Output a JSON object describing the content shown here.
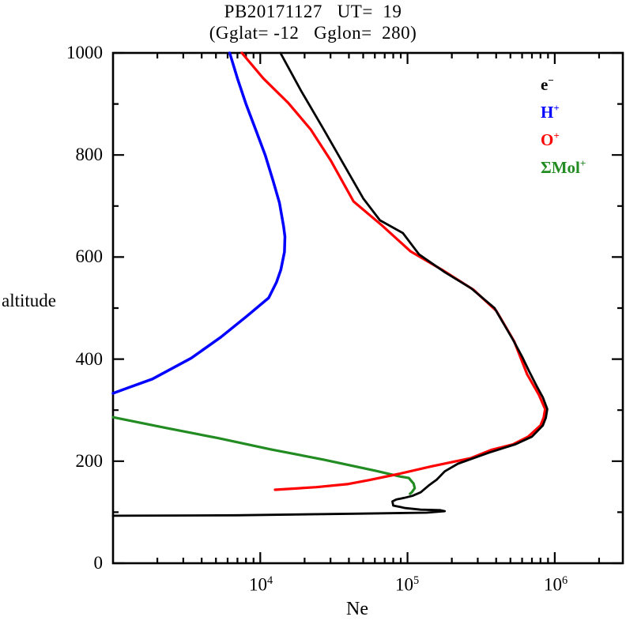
{
  "title": {
    "line1": "PB20171127   UT=  19",
    "line2": "(Gglat= -12   Gglon=  280)"
  },
  "axis_labels": {
    "y": "altitude",
    "x": "Ne"
  },
  "legend": {
    "position": "top-right",
    "entries": [
      {
        "id": "electron",
        "base": "e",
        "sup": "−",
        "color": "#000000"
      },
      {
        "id": "hydrogen-ion",
        "base": "H",
        "sup": "+",
        "color": "#0000ff"
      },
      {
        "id": "oxygen-ion",
        "base": "O",
        "sup": "+",
        "color": "#ff0000"
      },
      {
        "id": "molecular-ion",
        "base": "ΣMol",
        "sup": "+",
        "color": "#228B22"
      }
    ]
  },
  "chart_data": {
    "type": "line",
    "title": "PB20171127  UT= 19",
    "subtitle": "(Gglat= -12  Gglon= 280)",
    "xlabel": "Ne",
    "ylabel": "altitude",
    "x_scale": "log",
    "xlim": [
      1000,
      2900000
    ],
    "ylim": [
      0,
      1000
    ],
    "grid": false,
    "frame_color": "#000000",
    "xticks": [
      {
        "base": "10",
        "exp": "4",
        "value": 10000
      },
      {
        "base": "10",
        "exp": "5",
        "value": 100000
      },
      {
        "base": "10",
        "exp": "6",
        "value": 1000000
      }
    ],
    "yticks": [
      "1000",
      "800",
      "600",
      "400",
      "200",
      "0"
    ],
    "ytick_values": [
      0,
      200,
      400,
      600,
      800,
      1000
    ],
    "ytick_minor": [
      100,
      300,
      500,
      700,
      900
    ],
    "series": [
      {
        "name": "SigmaMol+",
        "color": "#228B22",
        "width": 3.2,
        "points": [
          [
            1000,
            286
          ],
          [
            2300,
            265
          ],
          [
            5200,
            245
          ],
          [
            11800,
            223
          ],
          [
            27000,
            203
          ],
          [
            61000,
            181
          ],
          [
            89000,
            170
          ],
          [
            102000,
            167
          ],
          [
            110000,
            156
          ],
          [
            112000,
            147
          ],
          [
            107000,
            139
          ],
          [
            104000,
            136
          ]
        ]
      },
      {
        "name": "H+",
        "color": "#0000ff",
        "width": 3.5,
        "points": [
          [
            6200,
            1000
          ],
          [
            7000,
            950
          ],
          [
            8000,
            900
          ],
          [
            9300,
            850
          ],
          [
            10800,
            800
          ],
          [
            12200,
            750
          ],
          [
            13500,
            706
          ],
          [
            14400,
            660
          ],
          [
            14700,
            640
          ],
          [
            14600,
            610
          ],
          [
            13800,
            575
          ],
          [
            12900,
            551
          ],
          [
            11400,
            520
          ],
          [
            8100,
            484
          ],
          [
            5400,
            443
          ],
          [
            3400,
            402
          ],
          [
            1850,
            361
          ],
          [
            1300,
            345
          ],
          [
            1000,
            333
          ]
        ]
      },
      {
        "name": "O+",
        "color": "#ff0000",
        "width": 3.2,
        "points": [
          [
            7500,
            1000
          ],
          [
            10500,
            950
          ],
          [
            15500,
            902
          ],
          [
            22000,
            850
          ],
          [
            30000,
            790
          ],
          [
            43000,
            709
          ],
          [
            67000,
            662
          ],
          [
            105000,
            611
          ],
          [
            176000,
            573
          ],
          [
            280000,
            536
          ],
          [
            400000,
            495
          ],
          [
            530000,
            435
          ],
          [
            650000,
            370
          ],
          [
            780000,
            330
          ],
          [
            860000,
            302
          ],
          [
            840000,
            285
          ],
          [
            800000,
            270
          ],
          [
            660000,
            248
          ],
          [
            520000,
            233
          ],
          [
            370000,
            222
          ],
          [
            270000,
            206
          ],
          [
            146000,
            190
          ],
          [
            87000,
            175
          ],
          [
            55000,
            163
          ],
          [
            39000,
            155
          ],
          [
            24000,
            149
          ],
          [
            12600,
            144
          ]
        ]
      },
      {
        "name": "e-",
        "color": "#000000",
        "width": 2.8,
        "points": [
          [
            13700,
            1000
          ],
          [
            19000,
            925
          ],
          [
            27000,
            850
          ],
          [
            38000,
            775
          ],
          [
            50000,
            715
          ],
          [
            65000,
            672
          ],
          [
            93000,
            647
          ],
          [
            120000,
            605
          ],
          [
            180000,
            570
          ],
          [
            270000,
            539
          ],
          [
            390000,
            500
          ],
          [
            520000,
            438
          ],
          [
            600000,
            405
          ],
          [
            670000,
            376
          ],
          [
            760000,
            345
          ],
          [
            830000,
            325
          ],
          [
            890000,
            302
          ],
          [
            870000,
            285
          ],
          [
            830000,
            270
          ],
          [
            700000,
            248
          ],
          [
            540000,
            233
          ],
          [
            360000,
            217
          ],
          [
            220000,
            195
          ],
          [
            179000,
            180
          ],
          [
            158000,
            164
          ],
          [
            139000,
            152
          ],
          [
            123000,
            139
          ],
          [
            108000,
            132
          ],
          [
            95000,
            128
          ],
          [
            84000,
            125
          ],
          [
            79000,
            121
          ],
          [
            80000,
            113
          ],
          [
            97000,
            108
          ],
          [
            123000,
            105
          ],
          [
            166000,
            104
          ],
          [
            179000,
            102
          ],
          [
            135000,
            99
          ],
          [
            44000,
            97
          ],
          [
            6900,
            94
          ],
          [
            1000,
            93
          ]
        ]
      }
    ]
  }
}
